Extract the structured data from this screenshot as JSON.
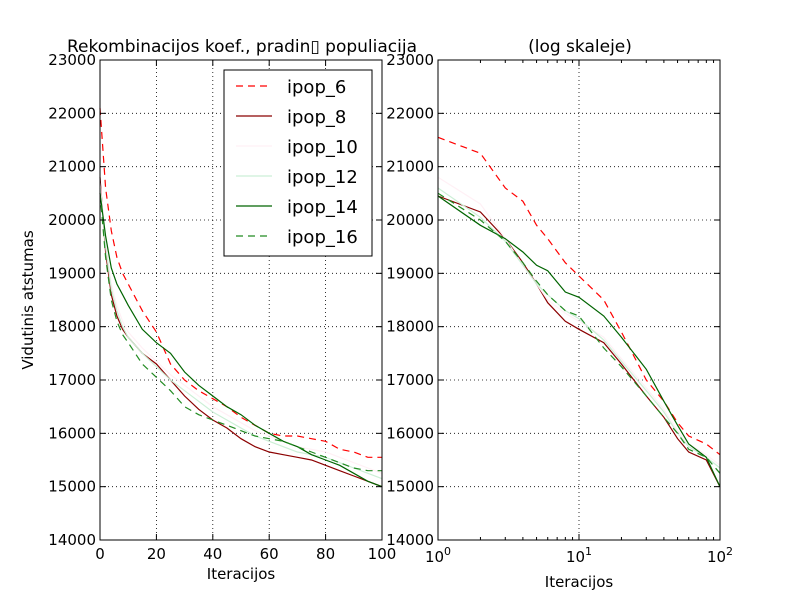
{
  "chart_data": [
    {
      "type": "line",
      "title": "Rekombinacijos koef., pradin▯ populiacija",
      "xlabel": "Iteracijos",
      "ylabel": "Vidutinis atstumas",
      "xscale": "linear",
      "xlim": [
        0,
        100
      ],
      "ylim": [
        14000,
        23000
      ],
      "x_ticks": [
        "0",
        "20",
        "40",
        "60",
        "80",
        "100"
      ],
      "y_ticks": [
        "14000",
        "15000",
        "16000",
        "17000",
        "18000",
        "19000",
        "20000",
        "21000",
        "22000",
        "23000"
      ],
      "grid": true,
      "legend_location": "top-right",
      "x": [
        0,
        2,
        4,
        6,
        8,
        10,
        15,
        20,
        25,
        30,
        35,
        40,
        45,
        50,
        55,
        60,
        65,
        70,
        75,
        80,
        85,
        90,
        95,
        100
      ],
      "series": [
        {
          "name": "ipop_6",
          "color": "#ff0000",
          "dash": "dashed",
          "values": [
            22100,
            20600,
            19800,
            19300,
            19000,
            18800,
            18300,
            17900,
            17300,
            17000,
            16800,
            16650,
            16500,
            16300,
            16150,
            16000,
            15950,
            15950,
            15900,
            15850,
            15700,
            15650,
            15550,
            15550
          ]
        },
        {
          "name": "ipop_8",
          "color": "#8b0000",
          "dash": "solid",
          "values": [
            20800,
            19400,
            18600,
            18200,
            17950,
            17800,
            17500,
            17300,
            17000,
            16700,
            16450,
            16250,
            16100,
            15900,
            15750,
            15650,
            15600,
            15550,
            15500,
            15400,
            15300,
            15200,
            15100,
            15000
          ]
        },
        {
          "name": "ipop_10",
          "color": "#fff0f5",
          "dash": "solid",
          "values": [
            20700,
            19600,
            18800,
            18400,
            18100,
            17900,
            17600,
            17350,
            17100,
            16900,
            16700,
            16500,
            16350,
            16200,
            16050,
            15950,
            15850,
            15750,
            15700,
            15650,
            15550,
            15450,
            15350,
            15250
          ]
        },
        {
          "name": "ipop_12",
          "color": "#ccefd6",
          "dash": "solid",
          "values": [
            20600,
            19500,
            18700,
            18300,
            18000,
            17800,
            17500,
            17250,
            17000,
            16800,
            16600,
            16400,
            16250,
            16100,
            15950,
            15850,
            15750,
            15650,
            15600,
            15550,
            15450,
            15350,
            15250,
            15150
          ]
        },
        {
          "name": "ipop_14",
          "color": "#006400",
          "dash": "solid",
          "values": [
            20500,
            19700,
            19100,
            18800,
            18600,
            18400,
            17950,
            17700,
            17500,
            17150,
            16900,
            16700,
            16500,
            16350,
            16150,
            16000,
            15850,
            15750,
            15600,
            15500,
            15400,
            15250,
            15100,
            15000
          ]
        },
        {
          "name": "ipop_16",
          "color": "#228b22",
          "dash": "dashed",
          "values": [
            20500,
            19300,
            18500,
            18100,
            17850,
            17700,
            17300,
            17050,
            16800,
            16500,
            16350,
            16250,
            16150,
            16050,
            15950,
            15900,
            15850,
            15750,
            15650,
            15550,
            15450,
            15350,
            15300,
            15300
          ]
        }
      ]
    },
    {
      "type": "line",
      "title": "(log skaleje)",
      "xlabel": "Iteracijos",
      "ylabel": "",
      "xscale": "log",
      "xlim": [
        1,
        100
      ],
      "ylim": [
        14000,
        23000
      ],
      "x_tick_bases": [
        "10",
        "10",
        "10"
      ],
      "x_tick_exponents": [
        "0",
        "1",
        "2"
      ],
      "y_ticks": [
        "14000",
        "15000",
        "16000",
        "17000",
        "18000",
        "19000",
        "20000",
        "21000",
        "22000",
        "23000"
      ],
      "grid": true,
      "x": [
        1,
        2,
        3,
        4,
        5,
        6,
        8,
        10,
        15,
        20,
        30,
        40,
        50,
        60,
        80,
        100
      ],
      "series": [
        {
          "name": "ipop_6",
          "color": "#ff0000",
          "dash": "dashed",
          "values": [
            21550,
            21250,
            20600,
            20350,
            19900,
            19650,
            19200,
            18950,
            18500,
            17900,
            17000,
            16600,
            16200,
            15950,
            15800,
            15600
          ]
        },
        {
          "name": "ipop_8",
          "color": "#8b0000",
          "dash": "solid",
          "values": [
            20450,
            20150,
            19650,
            19200,
            18800,
            18450,
            18100,
            17950,
            17700,
            17300,
            16700,
            16300,
            15900,
            15650,
            15500,
            15000
          ]
        },
        {
          "name": "ipop_10",
          "color": "#fff0f5",
          "dash": "solid",
          "values": [
            20800,
            20300,
            19650,
            19150,
            18800,
            18500,
            18250,
            18100,
            17800,
            17400,
            16850,
            16450,
            16050,
            15800,
            15600,
            15400
          ]
        },
        {
          "name": "ipop_12",
          "color": "#ccefd6",
          "dash": "solid",
          "values": [
            20600,
            20050,
            19600,
            19150,
            18800,
            18600,
            18300,
            18150,
            17750,
            17350,
            16800,
            16400,
            16000,
            15750,
            15550,
            15350
          ]
        },
        {
          "name": "ipop_14",
          "color": "#006400",
          "dash": "solid",
          "values": [
            20450,
            19900,
            19650,
            19400,
            19150,
            19050,
            18650,
            18550,
            18200,
            17800,
            17200,
            16600,
            16150,
            15800,
            15550,
            15000
          ]
        },
        {
          "name": "ipop_16",
          "color": "#228b22",
          "dash": "dashed",
          "values": [
            20500,
            20000,
            19600,
            19200,
            18850,
            18600,
            18300,
            18200,
            17600,
            17250,
            16700,
            16300,
            16000,
            15700,
            15550,
            15250
          ]
        }
      ]
    }
  ]
}
